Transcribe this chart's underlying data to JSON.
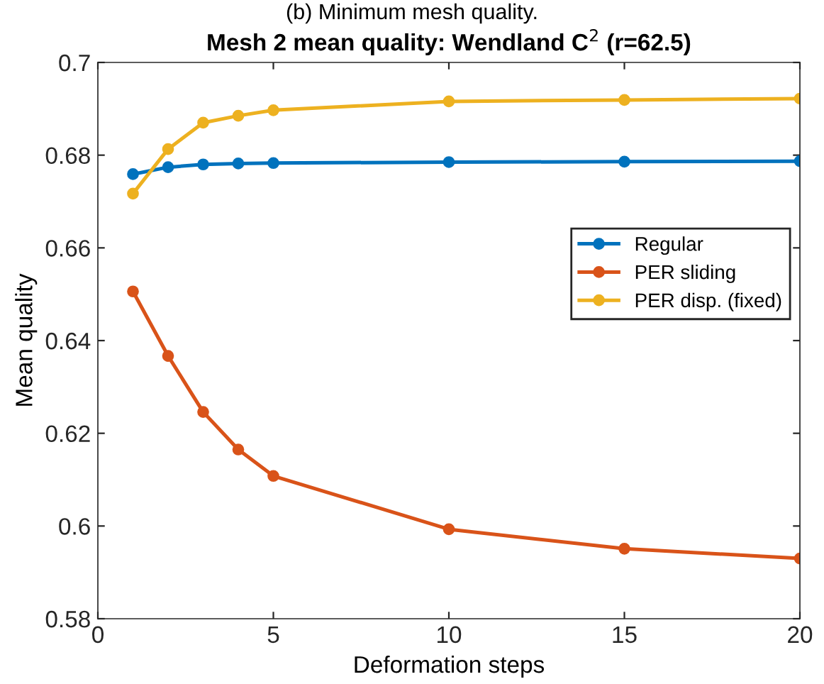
{
  "chart_data": {
    "type": "line",
    "title": "Mesh 2 mean quality: Wendland C$^{2}$ (r=62.5)",
    "xlabel": "Deformation steps",
    "ylabel": "Mean quality",
    "annotations": [
      "(b) Minimum mesh quality."
    ],
    "x": [
      1,
      2,
      3,
      4,
      5,
      10,
      15,
      20
    ],
    "series": [
      {
        "name": "Regular",
        "color": "#0072bd",
        "values": [
          0.6759,
          0.6774,
          0.678,
          0.6782,
          0.6783,
          0.6785,
          0.6786,
          0.6787
        ]
      },
      {
        "name": "PER sliding",
        "color": "#d95319",
        "values": [
          0.6506,
          0.6367,
          0.6246,
          0.6165,
          0.6108,
          0.5993,
          0.5951,
          0.593
        ]
      },
      {
        "name": "PER disp. (fixed)",
        "color": "#edb120",
        "values": [
          0.6717,
          0.6813,
          0.687,
          0.6885,
          0.6897,
          0.6916,
          0.6919,
          0.6922
        ]
      }
    ],
    "xlim": [
      0,
      20
    ],
    "xticks": [
      0,
      5,
      10,
      15,
      20
    ],
    "ylim": [
      0.58,
      0.7
    ],
    "yticks": [
      0.58,
      0.6,
      0.62,
      0.64,
      0.66,
      0.68,
      0.7
    ],
    "grid": false,
    "legend": "right",
    "marker": "circle",
    "line_style": "solid"
  }
}
